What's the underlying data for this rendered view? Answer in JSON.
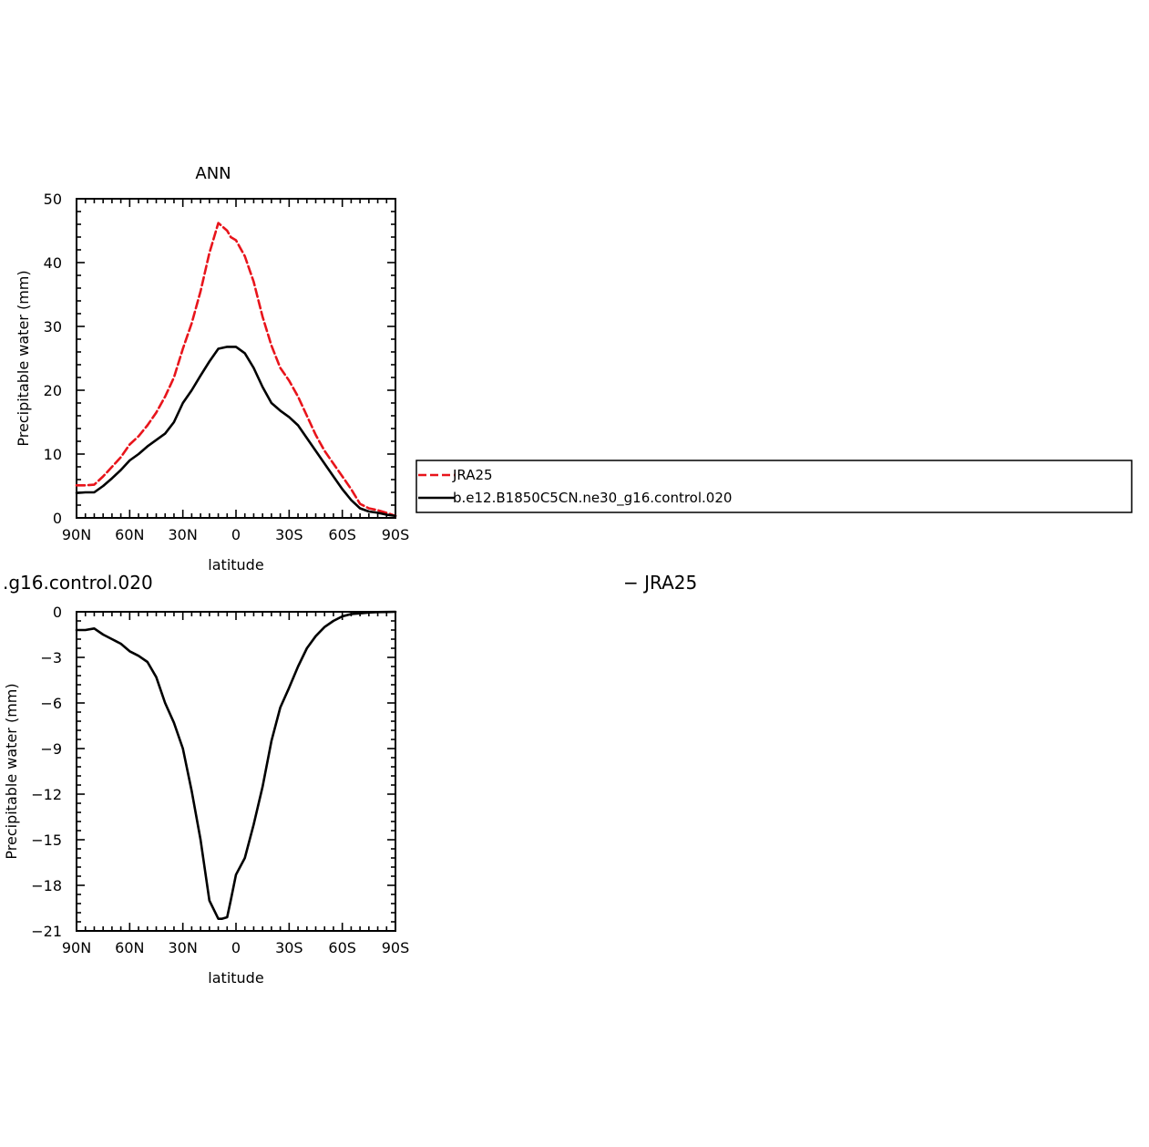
{
  "colors": {
    "obs": "#e8141b",
    "model": "#000000",
    "axis": "#000000"
  },
  "chart_data": [
    {
      "type": "line",
      "title": "ANN",
      "xlabel": "latitude",
      "ylabel": "Precipitable water (mm)",
      "xlim": [
        90,
        -90
      ],
      "ylim": [
        0,
        50
      ],
      "x_ticks": [
        90,
        60,
        30,
        0,
        -30,
        -60,
        -90
      ],
      "x_tick_labels": [
        "90N",
        "60N",
        "30N",
        "0",
        "30S",
        "60S",
        "90S"
      ],
      "y_ticks": [
        0,
        10,
        20,
        30,
        40,
        50
      ],
      "y_tick_labels": [
        "0",
        "10",
        "20",
        "30",
        "40",
        "50"
      ],
      "legend": {
        "placement": "right"
      },
      "series": [
        {
          "name": "JRA25",
          "color": "#e8141b",
          "dash": "dashed",
          "x": [
            90,
            85,
            80,
            75,
            70,
            65,
            60,
            55,
            50,
            45,
            40,
            35,
            30,
            25,
            20,
            15,
            10,
            5,
            3,
            0,
            -5,
            -10,
            -15,
            -20,
            -25,
            -30,
            -35,
            -40,
            -45,
            -50,
            -55,
            -60,
            -65,
            -70,
            -75,
            -80,
            -85,
            -90
          ],
          "y": [
            5.1,
            5.1,
            5.2,
            6.5,
            8.0,
            9.5,
            11.5,
            12.8,
            14.5,
            16.5,
            19.0,
            22.0,
            26.5,
            30.5,
            35.5,
            41.5,
            46.2,
            45.0,
            44.0,
            43.5,
            41.0,
            37.0,
            31.5,
            27.0,
            23.5,
            21.5,
            19.0,
            16.0,
            13.0,
            10.5,
            8.5,
            6.5,
            4.5,
            2.2,
            1.5,
            1.2,
            0.8,
            0.3
          ]
        },
        {
          "name": "b.e12.B1850C5CN.ne30_g16.control.020",
          "color": "#000000",
          "dash": "solid",
          "x": [
            90,
            85,
            80,
            75,
            70,
            65,
            60,
            55,
            50,
            45,
            40,
            35,
            30,
            25,
            20,
            15,
            10,
            5,
            3,
            0,
            -5,
            -10,
            -15,
            -20,
            -25,
            -30,
            -35,
            -40,
            -45,
            -50,
            -55,
            -60,
            -65,
            -70,
            -75,
            -80,
            -85,
            -90
          ],
          "y": [
            3.9,
            4.0,
            4.0,
            5.0,
            6.2,
            7.5,
            9.0,
            10.0,
            11.2,
            12.2,
            13.2,
            15.0,
            18.0,
            20.0,
            22.3,
            24.5,
            26.5,
            26.8,
            26.8,
            26.8,
            25.8,
            23.5,
            20.5,
            18.0,
            16.8,
            15.8,
            14.5,
            12.5,
            10.5,
            8.5,
            6.5,
            4.5,
            2.8,
            1.5,
            1.0,
            0.8,
            0.5,
            0.3
          ]
        }
      ]
    },
    {
      "type": "line",
      "title": "",
      "xlabel": "latitude",
      "ylabel": "Precipitable water (mm)",
      "xlim": [
        90,
        -90
      ],
      "ylim": [
        -21,
        0
      ],
      "x_ticks": [
        90,
        60,
        30,
        0,
        -30,
        -60,
        -90
      ],
      "x_tick_labels": [
        "90N",
        "60N",
        "30N",
        "0",
        "30S",
        "60S",
        "90S"
      ],
      "y_ticks": [
        0,
        -3,
        -6,
        -9,
        -12,
        -15,
        -18,
        -21
      ],
      "y_tick_labels": [
        "0",
        "−3",
        "−6",
        "−9",
        "−12",
        "−15",
        "−18",
        "−21"
      ],
      "left_caption": ".g16.control.020",
      "right_caption": "− JRA25",
      "series": [
        {
          "color": "#000000",
          "dash": "solid",
          "x": [
            90,
            85,
            80,
            75,
            70,
            65,
            60,
            55,
            50,
            45,
            40,
            35,
            30,
            25,
            20,
            15,
            10,
            8,
            5,
            3,
            0,
            -5,
            -10,
            -15,
            -20,
            -25,
            -30,
            -35,
            -40,
            -45,
            -50,
            -55,
            -60,
            -65,
            -70,
            -75,
            -80,
            -85,
            -90
          ],
          "y": [
            -1.2,
            -1.2,
            -1.1,
            -1.5,
            -1.8,
            -2.1,
            -2.6,
            -2.9,
            -3.3,
            -4.3,
            -6.0,
            -7.3,
            -9.0,
            -11.8,
            -15.0,
            -19.0,
            -20.2,
            -20.2,
            -20.1,
            -19.0,
            -17.3,
            -16.2,
            -14.0,
            -11.5,
            -8.5,
            -6.3,
            -5.0,
            -3.6,
            -2.4,
            -1.6,
            -1.0,
            -0.6,
            -0.3,
            -0.15,
            -0.1,
            -0.05,
            -0.02,
            -0.01,
            0.0
          ]
        }
      ]
    }
  ]
}
